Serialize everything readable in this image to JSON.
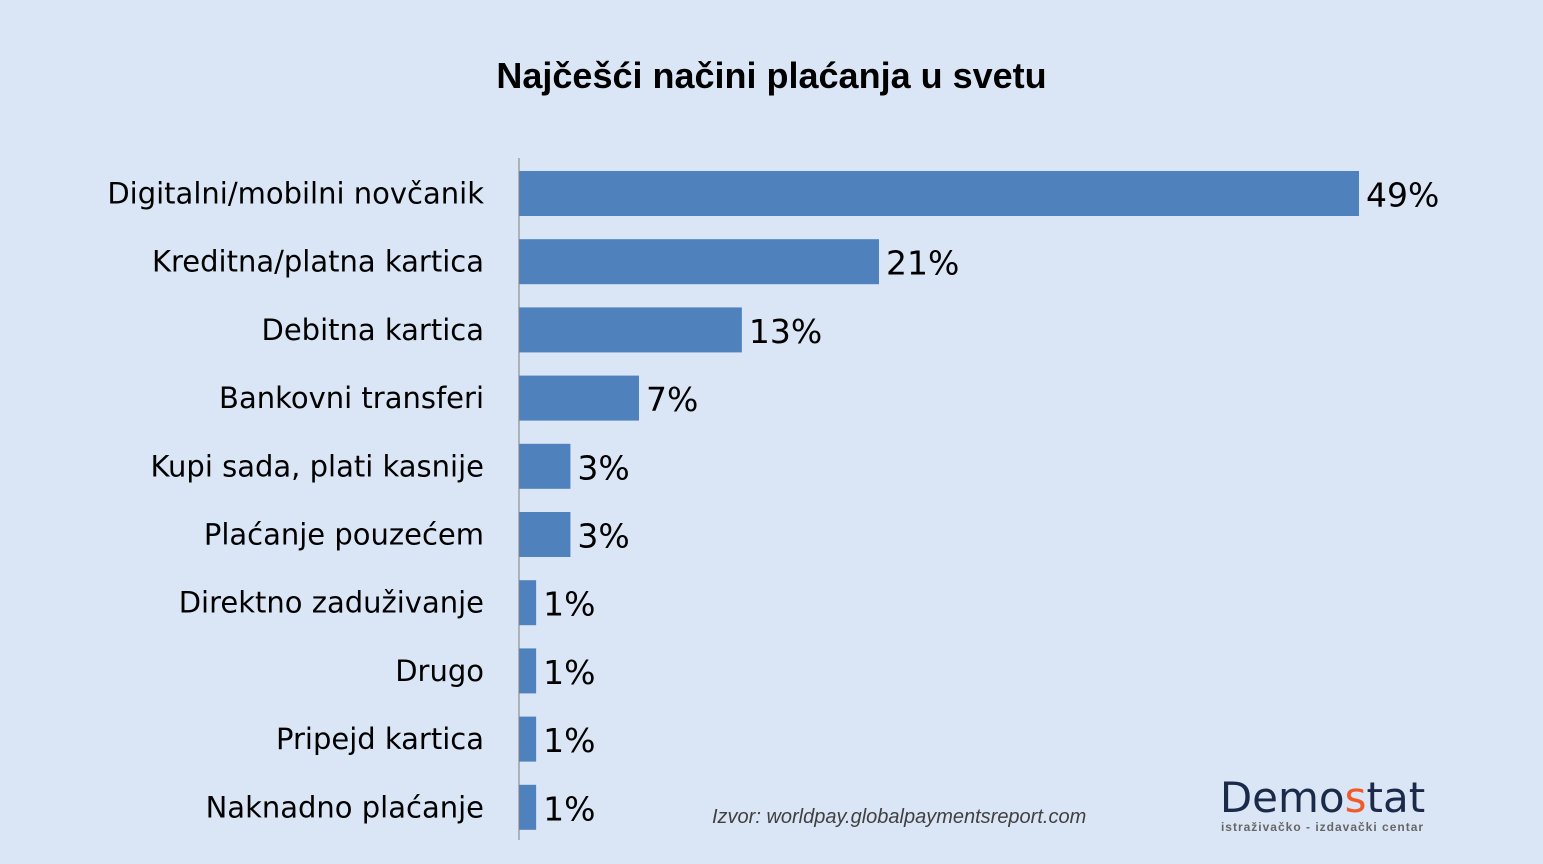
{
  "chart_data": {
    "type": "bar",
    "orientation": "horizontal",
    "title": "Najčešći načini plaćanja u svetu",
    "categories": [
      "Digitalni/mobilni novčanik",
      "Kreditna/platna kartica",
      "Debitna kartica",
      "Bankovni transferi",
      "Kupi sada, plati kasnije",
      "Plaćanje pouzećem",
      "Direktno zaduživanje",
      "Drugo",
      "Pripejd kartica",
      "Naknadno plaćanje"
    ],
    "values": [
      49,
      21,
      13,
      7,
      3,
      3,
      1,
      1,
      1,
      1
    ],
    "value_labels": [
      "49%",
      "21%",
      "13%",
      "7%",
      "3%",
      "3%",
      "1%",
      "1%",
      "1%",
      "1%"
    ],
    "xlabel": "",
    "ylabel": "",
    "xlim": [
      0,
      49
    ],
    "grid": false,
    "bar_color": "#4f81bd"
  },
  "source": "Izvor: worldpay.globalpaymentsreport.com",
  "logo": {
    "prefix": "Demo",
    "accent": "s",
    "suffix": "tat",
    "subtitle": "istraživačko - izdavački centar"
  }
}
